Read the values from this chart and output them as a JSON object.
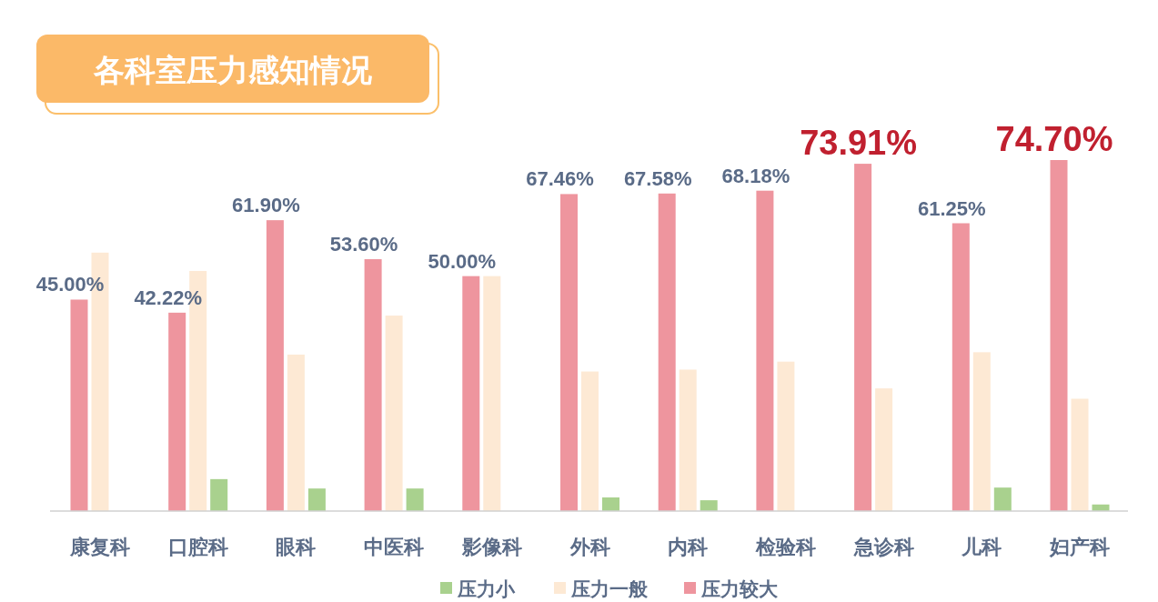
{
  "chart_data": {
    "type": "bar",
    "title": "各科室压力感知情况",
    "categories": [
      "康复科",
      "口腔科",
      "眼科",
      "中医科",
      "影像科",
      "外科",
      "内科",
      "检验科",
      "急诊科",
      "儿科",
      "妇产科"
    ],
    "series": [
      {
        "name": "压力小",
        "color": "#a9d18e",
        "values": [
          null,
          6.8,
          4.8,
          4.8,
          null,
          2.9,
          2.3,
          null,
          null,
          5.0,
          1.4
        ]
      },
      {
        "name": "压力一般",
        "color": "#fde9d4",
        "values": [
          55.0,
          51.1,
          33.3,
          41.6,
          50.0,
          29.7,
          30.1,
          31.8,
          26.1,
          33.8,
          23.9
        ]
      },
      {
        "name": "压力较大",
        "color": "#ee959e",
        "values": [
          45.0,
          42.22,
          61.9,
          53.6,
          50.0,
          67.46,
          67.58,
          68.18,
          73.91,
          61.25,
          74.7
        ],
        "value_labels": [
          "45.00%",
          "42.22%",
          "61.90%",
          "53.60%",
          "50.00%",
          "67.46%",
          "67.58%",
          "68.18%",
          "73.91%",
          "61.25%",
          "74.70%"
        ]
      }
    ],
    "legend": "bottom"
  }
}
